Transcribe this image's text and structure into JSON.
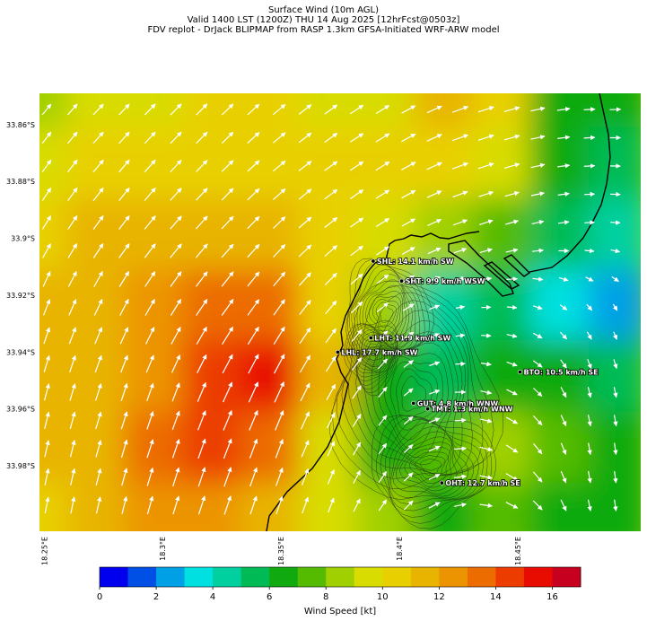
{
  "header": {
    "line1": "Surface Wind (10m AGL)",
    "line2": "Valid 1400 LST (1200Z) THU 14 Aug 2025 [12hrFcst@0503z]",
    "line3": "FDV replot - DrJack BLIPMAP from RASP 1.3km GFSA-Initiated WRF-ARW model"
  },
  "axes": {
    "lat_labels": [
      "33.86°S",
      "33.88°S",
      "33.9°S",
      "33.92°S",
      "33.94°S",
      "33.96°S",
      "33.98°S"
    ],
    "lat_values": [
      -33.86,
      -33.88,
      -33.9,
      -33.92,
      -33.94,
      -33.96,
      -33.98
    ],
    "lon_labels": [
      "18.25°E",
      "18.3°E",
      "18.35°E",
      "18.4°E",
      "18.45°E"
    ],
    "lon_values": [
      18.25,
      18.3,
      18.35,
      18.4,
      18.45
    ],
    "lat_range": [
      -34.003,
      -33.849
    ],
    "lon_range": [
      18.248,
      18.502
    ]
  },
  "stations": [
    {
      "label": "SHL: 14.1 km/h SW",
      "lon": 18.389,
      "lat": -33.908
    },
    {
      "label": "SHT: 9.9 km/h WSW",
      "lon": 18.401,
      "lat": -33.915
    },
    {
      "label": "LHT: 11.9 km/h SW",
      "lon": 18.388,
      "lat": -33.935
    },
    {
      "label": "LHL: 17.7 km/h SW",
      "lon": 18.374,
      "lat": -33.94
    },
    {
      "label": "BTO: 10.5 km/h SE",
      "lon": 18.451,
      "lat": -33.947
    },
    {
      "label": "GUT: 4.8 km/h WNW",
      "lon": 18.406,
      "lat": -33.958
    },
    {
      "label": "TMT: 1.3 km/h WNW",
      "lon": 18.412,
      "lat": -33.96
    },
    {
      "label": "OHT: 12.7 km/h SE",
      "lon": 18.418,
      "lat": -33.986
    }
  ],
  "colorbar": {
    "ticks": [
      "0",
      "2",
      "4",
      "6",
      "8",
      "10",
      "12",
      "14",
      "16"
    ],
    "label": "Wind Speed [kt]",
    "min": 0,
    "max": 17,
    "colors": [
      "#0000ef",
      "#0050e6",
      "#00a0e6",
      "#00e0e0",
      "#00d0a0",
      "#00bb55",
      "#10aa10",
      "#55bb00",
      "#a0d000",
      "#d8dc00",
      "#e8d000",
      "#e8b400",
      "#ec9400",
      "#ec6c00",
      "#ec3c00",
      "#e80c00",
      "#c80020"
    ]
  },
  "wind_field": {
    "type": "heatmap",
    "units": "kt",
    "lon": [
      18.248,
      18.2725,
      18.297,
      18.3215,
      18.346,
      18.3705,
      18.395,
      18.4195,
      18.444,
      18.4685,
      18.493
    ],
    "lat": [
      -33.849,
      -33.874,
      -33.899,
      -33.924,
      -33.949,
      -33.974,
      -33.999
    ],
    "speed": [
      [
        8.2,
        9.0,
        9.6,
        10.0,
        10.2,
        9.8,
        9.6,
        11.0,
        10.2,
        6.5,
        6.0
      ],
      [
        9.2,
        10.2,
        10.4,
        10.2,
        10.2,
        10.0,
        10.4,
        10.8,
        9.8,
        6.0,
        5.2
      ],
      [
        10.2,
        11.2,
        11.6,
        11.4,
        11.0,
        10.2,
        9.2,
        8.8,
        7.2,
        5.0,
        4.8
      ],
      [
        11.0,
        11.8,
        12.6,
        13.6,
        13.0,
        10.8,
        8.0,
        4.0,
        5.2,
        3.6,
        2.5
      ],
      [
        11.2,
        11.8,
        12.6,
        14.8,
        15.8,
        11.2,
        6.6,
        5.6,
        6.8,
        6.0,
        5.6
      ],
      [
        11.0,
        11.4,
        13.2,
        14.6,
        13.2,
        9.8,
        6.8,
        7.2,
        8.8,
        7.0,
        6.8
      ],
      [
        10.4,
        11.0,
        12.2,
        12.4,
        11.8,
        9.0,
        8.0,
        6.8,
        7.6,
        6.4,
        6.0
      ]
    ],
    "direction_deg": [
      [
        220,
        225,
        225,
        225,
        230,
        235,
        240,
        250,
        255,
        265,
        270
      ],
      [
        215,
        220,
        222,
        225,
        230,
        235,
        240,
        250,
        255,
        265,
        275
      ],
      [
        210,
        215,
        220,
        222,
        225,
        232,
        240,
        250,
        255,
        265,
        280
      ],
      [
        200,
        205,
        210,
        215,
        215,
        220,
        235,
        260,
        280,
        320,
        340
      ],
      [
        195,
        198,
        200,
        205,
        205,
        210,
        225,
        270,
        300,
        345,
        350
      ],
      [
        192,
        195,
        198,
        200,
        200,
        205,
        220,
        265,
        310,
        350,
        355
      ],
      [
        190,
        192,
        195,
        198,
        198,
        200,
        220,
        255,
        300,
        345,
        355
      ]
    ]
  }
}
